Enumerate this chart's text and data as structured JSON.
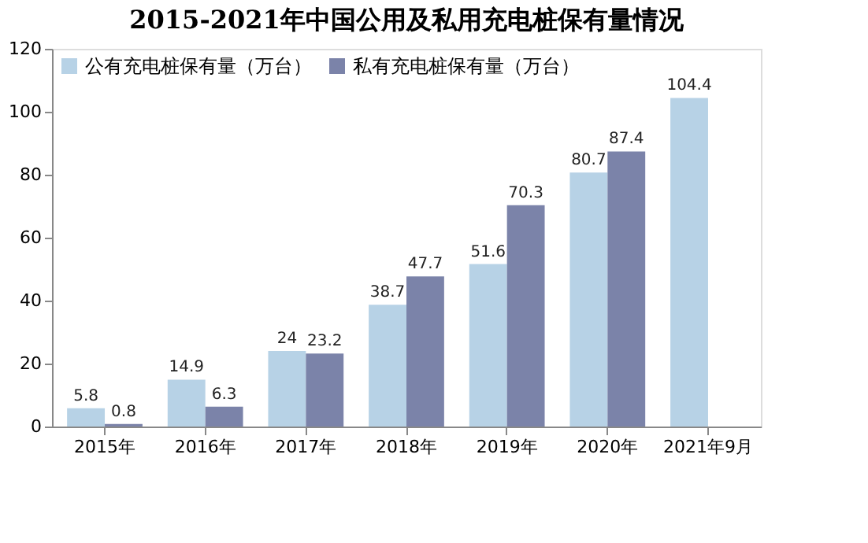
{
  "chart_data": {
    "type": "bar",
    "title": "2015-2021年中国公用及私用充电桩保有量情况",
    "categories": [
      "2015年",
      "2016年",
      "2017年",
      "2018年",
      "2019年",
      "2020年",
      "2021年9月"
    ],
    "series": [
      {
        "name": "公有充电桩保有量（万台）",
        "color": "#b7d2e6",
        "values": [
          5.8,
          14.9,
          24,
          38.7,
          51.6,
          80.7,
          104.4
        ]
      },
      {
        "name": "私有充电桩保有量（万台）",
        "color": "#7b83a9",
        "values": [
          0.8,
          6.3,
          23.2,
          47.7,
          70.3,
          87.4,
          null
        ]
      }
    ],
    "ylim": [
      0,
      120
    ],
    "yticks": [
      0,
      20,
      40,
      60,
      80,
      100,
      120
    ],
    "grid": false,
    "legend": "top left",
    "data_labels": true
  }
}
